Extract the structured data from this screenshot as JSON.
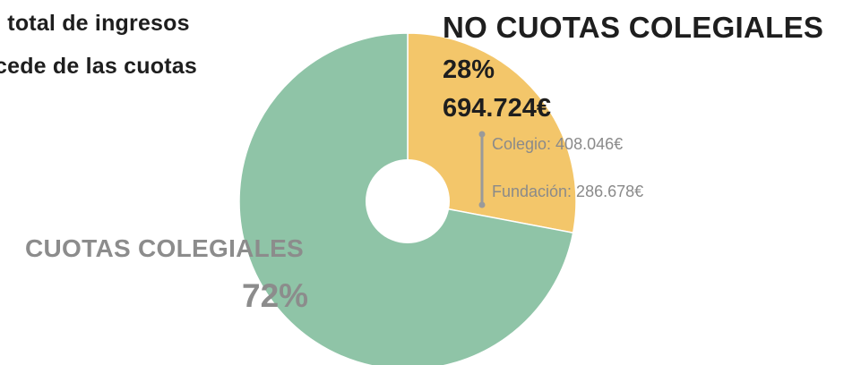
{
  "intro": {
    "line1": "l total de ingresos",
    "line2": "cede de las cuotas"
  },
  "chart_data": {
    "type": "pie",
    "categories": [
      "CUOTAS COLEGIALES",
      "NO CUOTAS COLEGIALES"
    ],
    "values": [
      72,
      28
    ],
    "labels": {
      "no_cuotas": {
        "title": "NO CUOTAS COLEGIALES",
        "pct": "28%",
        "amount": "694.724€",
        "breakdown": [
          {
            "name": "Colegio",
            "text": "Colegio: 408.046€",
            "value": 408046
          },
          {
            "name": "Fundación",
            "text": "Fundación: 286.678€",
            "value": 286678
          }
        ]
      },
      "cuotas": {
        "title": "CUOTAS COLEGIALES",
        "pct": "72%"
      }
    },
    "colors": {
      "cuotas": "#8fc4a7",
      "no_cuotas": "#f3c66a",
      "bracket": "#9a9a9a"
    }
  }
}
